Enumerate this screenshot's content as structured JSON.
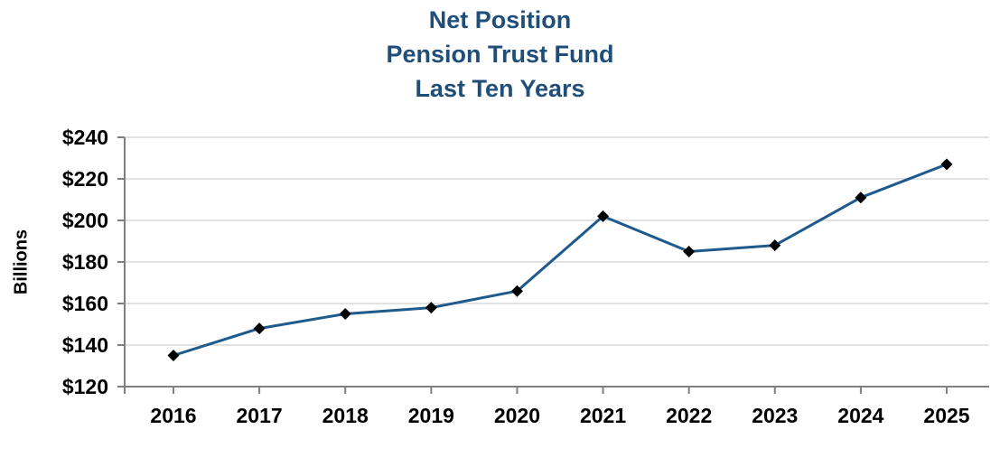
{
  "title": {
    "lines": [
      "Net Position",
      "Pension Trust Fund",
      "Last Ten Years"
    ],
    "color": "#1F4E79"
  },
  "chart_data": {
    "type": "line",
    "categories": [
      "2016",
      "2017",
      "2018",
      "2019",
      "2020",
      "2021",
      "2022",
      "2023",
      "2024",
      "2025"
    ],
    "values": [
      135,
      148,
      155,
      158,
      166,
      202,
      185,
      188,
      211,
      227
    ],
    "title": "Net Position Pension Trust Fund Last Ten Years",
    "xlabel": "",
    "ylabel": "Billions",
    "ylim": [
      120,
      240
    ],
    "ytick_step": 20,
    "ytick_labels": [
      "$120",
      "$140",
      "$160",
      "$180",
      "$200",
      "$220",
      "$240"
    ],
    "grid": true,
    "legend": "none",
    "marker": "diamond",
    "colors": {
      "line": "#1E5A8C",
      "marker": "#000000",
      "grid": "#D9D9D9",
      "axis": "#808080",
      "tick_label": "#000000",
      "title": "#1F4E79"
    }
  }
}
